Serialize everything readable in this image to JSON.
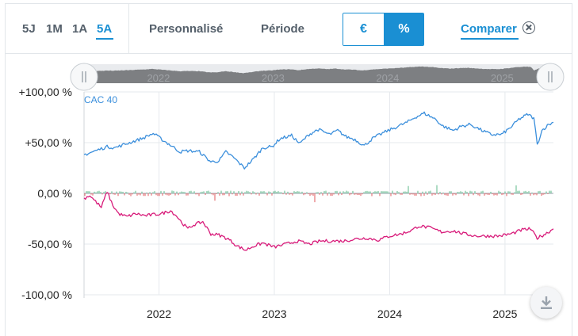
{
  "periods": [
    {
      "label": "5J",
      "active": false
    },
    {
      "label": "1M",
      "active": false
    },
    {
      "label": "1A",
      "active": false
    },
    {
      "label": "5A",
      "active": true
    }
  ],
  "toolbar": {
    "custom_label": "Personnalisé",
    "period_label": "Période",
    "currency_option": "€",
    "percent_option": "%",
    "compare_label": "Comparer"
  },
  "colors": {
    "accent": "#1a8fd3",
    "cac40_line": "#3b8fdc",
    "stock_line": "#d81b7a",
    "volume_up": "#5cb88a",
    "volume_down": "#e2575b"
  },
  "icons": {
    "close": "close-circle-icon",
    "download": "download-arrow-icon",
    "handle": "drag-handle-icon"
  },
  "chart_data": {
    "type": "line",
    "ylim": [
      -100,
      100
    ],
    "y_ticks": [
      {
        "value": 100,
        "label": "+100,00 %"
      },
      {
        "value": 50,
        "label": "+50,00 %"
      },
      {
        "value": 0,
        "label": "0,00 %"
      },
      {
        "value": -50,
        "label": "-50,00 %"
      },
      {
        "value": -100,
        "label": "-100,00 %"
      }
    ],
    "x_range": [
      2021.35,
      2025.42
    ],
    "x_ticks": [
      {
        "value": 2022,
        "label": "2022"
      },
      {
        "value": 2023,
        "label": "2023"
      },
      {
        "value": 2024,
        "label": "2024"
      },
      {
        "value": 2025,
        "label": "2025"
      }
    ],
    "series": [
      {
        "name": "CAC 40",
        "points": [
          [
            2021.35,
            38
          ],
          [
            2021.45,
            42
          ],
          [
            2021.55,
            46
          ],
          [
            2021.62,
            45
          ],
          [
            2021.72,
            49
          ],
          [
            2021.85,
            54
          ],
          [
            2021.95,
            59
          ],
          [
            2022.04,
            52
          ],
          [
            2022.12,
            46
          ],
          [
            2022.18,
            41
          ],
          [
            2022.25,
            42
          ],
          [
            2022.35,
            41
          ],
          [
            2022.45,
            31
          ],
          [
            2022.52,
            32
          ],
          [
            2022.58,
            41
          ],
          [
            2022.65,
            35
          ],
          [
            2022.74,
            25
          ],
          [
            2022.82,
            34
          ],
          [
            2022.9,
            45
          ],
          [
            2022.98,
            46
          ],
          [
            2023.05,
            54
          ],
          [
            2023.15,
            57
          ],
          [
            2023.22,
            49
          ],
          [
            2023.3,
            58
          ],
          [
            2023.38,
            63
          ],
          [
            2023.48,
            58
          ],
          [
            2023.55,
            62
          ],
          [
            2023.62,
            56
          ],
          [
            2023.7,
            53
          ],
          [
            2023.78,
            47
          ],
          [
            2023.85,
            54
          ],
          [
            2023.95,
            60
          ],
          [
            2024.05,
            65
          ],
          [
            2024.15,
            70
          ],
          [
            2024.22,
            75
          ],
          [
            2024.3,
            79
          ],
          [
            2024.4,
            73
          ],
          [
            2024.45,
            67
          ],
          [
            2024.55,
            62
          ],
          [
            2024.62,
            66
          ],
          [
            2024.7,
            68
          ],
          [
            2024.8,
            62
          ],
          [
            2024.88,
            58
          ],
          [
            2024.97,
            58
          ],
          [
            2025.05,
            65
          ],
          [
            2025.12,
            73
          ],
          [
            2025.2,
            78
          ],
          [
            2025.25,
            74
          ],
          [
            2025.28,
            48
          ],
          [
            2025.32,
            62
          ],
          [
            2025.38,
            68
          ],
          [
            2025.42,
            70
          ]
        ]
      },
      {
        "name": "",
        "points": [
          [
            2021.35,
            -5
          ],
          [
            2021.4,
            -2
          ],
          [
            2021.45,
            -8
          ],
          [
            2021.5,
            -14
          ],
          [
            2021.55,
            2
          ],
          [
            2021.6,
            -12
          ],
          [
            2021.65,
            -20
          ],
          [
            2021.72,
            -23
          ],
          [
            2021.8,
            -20
          ],
          [
            2021.88,
            -22
          ],
          [
            2021.95,
            -21
          ],
          [
            2022.02,
            -20
          ],
          [
            2022.1,
            -17
          ],
          [
            2022.15,
            -22
          ],
          [
            2022.2,
            -29
          ],
          [
            2022.25,
            -35
          ],
          [
            2022.3,
            -31
          ],
          [
            2022.38,
            -28
          ],
          [
            2022.45,
            -40
          ],
          [
            2022.52,
            -41
          ],
          [
            2022.6,
            -45
          ],
          [
            2022.68,
            -52
          ],
          [
            2022.75,
            -56
          ],
          [
            2022.82,
            -52
          ],
          [
            2022.9,
            -49
          ],
          [
            2023.0,
            -53
          ],
          [
            2023.1,
            -50
          ],
          [
            2023.2,
            -47
          ],
          [
            2023.3,
            -50
          ],
          [
            2023.4,
            -47
          ],
          [
            2023.5,
            -47
          ],
          [
            2023.6,
            -47
          ],
          [
            2023.7,
            -45
          ],
          [
            2023.8,
            -44
          ],
          [
            2023.9,
            -46
          ],
          [
            2024.0,
            -42
          ],
          [
            2024.1,
            -40
          ],
          [
            2024.2,
            -36
          ],
          [
            2024.25,
            -32
          ],
          [
            2024.35,
            -34
          ],
          [
            2024.45,
            -38
          ],
          [
            2024.55,
            -37
          ],
          [
            2024.65,
            -40
          ],
          [
            2024.75,
            -42
          ],
          [
            2024.85,
            -42
          ],
          [
            2024.95,
            -42
          ],
          [
            2025.05,
            -40
          ],
          [
            2025.15,
            -36
          ],
          [
            2025.22,
            -35
          ],
          [
            2025.28,
            -44
          ],
          [
            2025.35,
            -40
          ],
          [
            2025.42,
            -35
          ]
        ]
      }
    ],
    "navigator": {
      "x_range": [
        2021.35,
        2025.42
      ],
      "labels": [
        "2022",
        "2023",
        "2024",
        "2025"
      ]
    }
  }
}
